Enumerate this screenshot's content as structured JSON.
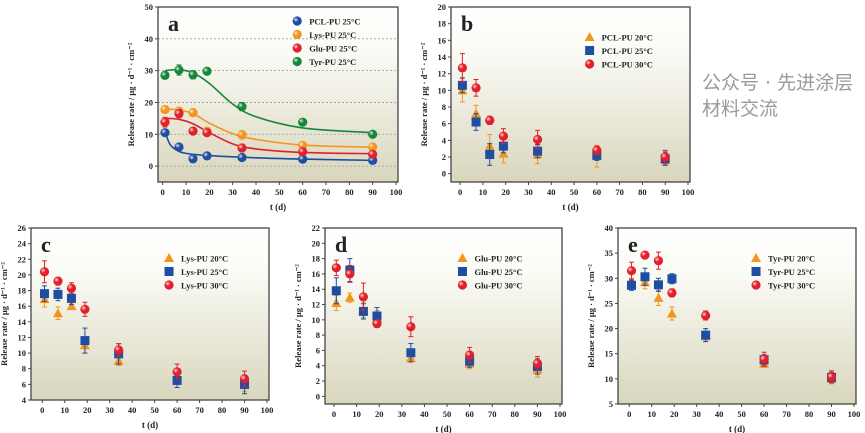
{
  "watermark": "公众号 · 先进涂层材料交流",
  "colors": {
    "blue": "#1d4ea3",
    "orange": "#f4951c",
    "red": "#e1202b",
    "green": "#17853a"
  },
  "chart_data": [
    {
      "panel": "a",
      "type": "scatter",
      "grid": true,
      "fit_curves": true,
      "xlabel": "t (d)",
      "ylabel": "Release rate / μg · d⁻¹ · cm⁻²",
      "xlim": [
        0,
        100
      ],
      "ylim": [
        -5,
        50
      ],
      "xticks": [
        0,
        10,
        20,
        30,
        40,
        50,
        60,
        70,
        80,
        90,
        100
      ],
      "yticks": [
        0,
        10,
        20,
        30,
        40,
        50
      ],
      "legend": "top-right",
      "x": [
        1,
        7,
        13,
        19,
        34,
        60,
        90
      ],
      "series": [
        {
          "name": "PCL-PU 25°C",
          "marker": "sphere",
          "color": "blue",
          "values": [
            10.5,
            6,
            2.3,
            3.2,
            2.7,
            2.2,
            1.8
          ],
          "err": [
            1,
            1,
            1.2,
            0.6,
            0.8,
            0.5,
            0.5
          ],
          "fit": [
            [
              1,
              11
            ],
            [
              3,
              7
            ],
            [
              6,
              5
            ],
            [
              10,
              4
            ],
            [
              20,
              3.3
            ],
            [
              40,
              2.6
            ],
            [
              60,
              2.2
            ],
            [
              90,
              1.8
            ]
          ]
        },
        {
          "name": "Lys-PU 25°C",
          "marker": "sphere",
          "color": "orange",
          "values": [
            17.8,
            17.3,
            16.8,
            11,
            9.8,
            6.5,
            6
          ],
          "err": [
            1,
            1,
            1.2,
            1,
            1.3,
            1,
            1
          ],
          "fit": [
            [
              1,
              18
            ],
            [
              7,
              17.6
            ],
            [
              13,
              16.5
            ],
            [
              20,
              13.5
            ],
            [
              30,
              10.2
            ],
            [
              40,
              8.4
            ],
            [
              60,
              6.6
            ],
            [
              90,
              5.9
            ]
          ]
        },
        {
          "name": "Glu-PU 25°C",
          "marker": "sphere",
          "color": "red",
          "values": [
            13.8,
            16.5,
            11,
            10.5,
            5.7,
            4.5,
            3.7
          ],
          "err": [
            1.5,
            1.3,
            1,
            1,
            1.2,
            0.8,
            0.8
          ],
          "fit": [
            [
              1,
              15
            ],
            [
              7,
              14.7
            ],
            [
              13,
              13.3
            ],
            [
              20,
              10.5
            ],
            [
              30,
              7
            ],
            [
              40,
              5.4
            ],
            [
              60,
              4.3
            ],
            [
              90,
              3.9
            ]
          ]
        },
        {
          "name": "Tyr-PU 25°C",
          "marker": "sphere",
          "color": "green",
          "values": [
            28.5,
            30.2,
            28.7,
            29.8,
            18.7,
            13.8,
            10
          ],
          "err": [
            1,
            1.6,
            1.3,
            1,
            1.3,
            0.7,
            1
          ],
          "fit": [
            [
              1,
              30
            ],
            [
              7,
              30.3
            ],
            [
              13,
              29.3
            ],
            [
              20,
              26
            ],
            [
              30,
              19.5
            ],
            [
              40,
              15.5
            ],
            [
              60,
              12
            ],
            [
              90,
              10.5
            ]
          ]
        }
      ]
    },
    {
      "panel": "b",
      "type": "scatter",
      "grid": false,
      "xlabel": "t (d)",
      "ylabel": "Release rate / μg · d⁻¹ · cm⁻²",
      "xlim": [
        0,
        100
      ],
      "ylim": [
        -1,
        20
      ],
      "xticks": [
        0,
        10,
        20,
        30,
        40,
        50,
        60,
        70,
        80,
        90,
        100
      ],
      "yticks": [
        0,
        2,
        4,
        6,
        8,
        10,
        12,
        14,
        16,
        18,
        20
      ],
      "legend": "top-right",
      "x": [
        1,
        7,
        13,
        19,
        34,
        60,
        90
      ],
      "series": [
        {
          "name": "PCL-PU 20°C",
          "marker": "triangle",
          "color": "orange",
          "values": [
            10,
            7.2,
            3.3,
            2.4,
            2.3,
            2.1,
            1.6
          ],
          "err": [
            1.4,
            1,
            1.4,
            1.1,
            1.1,
            1.3,
            0.6
          ]
        },
        {
          "name": "PCL-PU 25°C",
          "marker": "square",
          "color": "blue",
          "values": [
            10.6,
            6.2,
            2.3,
            3.3,
            2.7,
            2.2,
            1.8
          ],
          "err": [
            0.9,
            1,
            1.3,
            0.8,
            0.8,
            0.6,
            0.8
          ]
        },
        {
          "name": "PCL-PU 30°C",
          "marker": "sphere",
          "color": "red",
          "values": [
            12.7,
            10.3,
            6.4,
            4.5,
            4.1,
            2.8,
            2
          ],
          "err": [
            1.7,
            1,
            0.5,
            0.9,
            1.1,
            0.5,
            0.8
          ]
        }
      ]
    },
    {
      "panel": "c",
      "type": "scatter",
      "grid": false,
      "xlabel": "t (d)",
      "ylabel": "Release rate / μg · d⁻¹ · cm⁻²",
      "xlim": [
        0,
        100
      ],
      "ylim": [
        4,
        26
      ],
      "xticks": [
        0,
        10,
        20,
        30,
        40,
        50,
        60,
        70,
        80,
        90,
        100
      ],
      "yticks": [
        4,
        6,
        8,
        10,
        12,
        14,
        16,
        18,
        20,
        22,
        24,
        26
      ],
      "legend": "top-right",
      "x": [
        1,
        7,
        13,
        19,
        34,
        60,
        90
      ],
      "series": [
        {
          "name": "Lys-PU 20°C",
          "marker": "triangle",
          "color": "orange",
          "values": [
            16.9,
            15.1,
            16,
            11,
            9,
            6.8,
            5.9
          ],
          "err": [
            1,
            0.8,
            0.4,
            1,
            0.6,
            0.8,
            0.8
          ]
        },
        {
          "name": "Lys-PU 25°C",
          "marker": "square",
          "color": "blue",
          "values": [
            17.6,
            17.5,
            17,
            11.6,
            9.9,
            6.5,
            6
          ],
          "err": [
            1,
            0.8,
            0.8,
            1.6,
            1.3,
            0.9,
            1.2
          ]
        },
        {
          "name": "Lys-PU 30°C",
          "marker": "sphere",
          "color": "red",
          "values": [
            20.4,
            19.2,
            18.3,
            15.6,
            10.4,
            7.6,
            6.7
          ],
          "err": [
            1.4,
            0.5,
            0.7,
            0.9,
            0.8,
            1,
            1
          ]
        }
      ]
    },
    {
      "panel": "d",
      "type": "scatter",
      "grid": false,
      "xlabel": "t (d)",
      "ylabel": "Release rate / μg · d⁻¹ · cm⁻²",
      "xlim": [
        0,
        100
      ],
      "ylim": [
        -1,
        22
      ],
      "xticks": [
        0,
        10,
        20,
        30,
        40,
        50,
        60,
        70,
        80,
        90,
        100
      ],
      "yticks": [
        0,
        2,
        4,
        6,
        8,
        10,
        12,
        14,
        16,
        18,
        20,
        22
      ],
      "legend": "top-right",
      "x": [
        1,
        7,
        13,
        19,
        34,
        60,
        90
      ],
      "series": [
        {
          "name": "Glu-PU 20°C",
          "marker": "triangle",
          "color": "orange",
          "values": [
            12.2,
            12.9,
            11.3,
            10.2,
            5,
            4.3,
            3.5
          ],
          "err": [
            1,
            0.6,
            1,
            1,
            0.5,
            0.7,
            1
          ]
        },
        {
          "name": "Glu-PU 25°C",
          "marker": "square",
          "color": "blue",
          "values": [
            13.8,
            16.5,
            11.1,
            10.5,
            5.7,
            4.6,
            3.9
          ],
          "err": [
            1.7,
            1.5,
            1,
            1.1,
            1.2,
            0.8,
            1
          ]
        },
        {
          "name": "Glu-PU 30°C",
          "marker": "sphere",
          "color": "red",
          "values": [
            16.8,
            16,
            13,
            9.5,
            9.1,
            5.4,
            4.3
          ],
          "err": [
            1,
            1.1,
            1.8,
            0.5,
            1.3,
            1,
            0.9
          ]
        }
      ]
    },
    {
      "panel": "e",
      "type": "scatter",
      "grid": false,
      "xlabel": "t (d)",
      "ylabel": "Release rate / μg · d⁻¹ · cm⁻²",
      "xlim": [
        0,
        100
      ],
      "ylim": [
        5,
        40
      ],
      "xticks": [
        0,
        10,
        20,
        30,
        40,
        50,
        60,
        70,
        80,
        90,
        100
      ],
      "yticks": [
        5,
        10,
        15,
        20,
        25,
        30,
        35,
        40
      ],
      "legend": "top-right",
      "x": [
        1,
        7,
        13,
        19,
        34,
        60,
        90
      ],
      "series": [
        {
          "name": "Tyr-PU 20°C",
          "marker": "triangle",
          "color": "orange",
          "values": [
            29,
            29.2,
            26.1,
            23,
            18.5,
            13,
            10
          ],
          "err": [
            1,
            1.3,
            1.5,
            1.3,
            1,
            0.7,
            1
          ]
        },
        {
          "name": "Tyr-PU 25°C",
          "marker": "square",
          "color": "blue",
          "values": [
            28.6,
            30.3,
            28.7,
            29.9,
            18.7,
            13.8,
            10.3
          ],
          "err": [
            1,
            1.7,
            1.3,
            1,
            1.3,
            1,
            1
          ]
        },
        {
          "name": "Tyr-PU 30°C",
          "marker": "sphere",
          "color": "red",
          "values": [
            31.5,
            34.6,
            33.5,
            27.1,
            22.6,
            13.9,
            10.4
          ],
          "err": [
            1.7,
            0.5,
            1.7,
            0.8,
            0.9,
            1.4,
            1.2
          ]
        }
      ]
    }
  ]
}
